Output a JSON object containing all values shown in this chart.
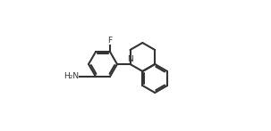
{
  "background_color": "#ffffff",
  "line_color": "#333333",
  "text_color": "#333333",
  "line_width": 1.5,
  "fig_width": 3.03,
  "fig_height": 1.47,
  "dpi": 100,
  "atoms": {
    "F": {
      "label": "F",
      "fontsize": 7
    },
    "N": {
      "label": "N",
      "fontsize": 7
    },
    "H2N": {
      "label": "H₂N",
      "fontsize": 7
    }
  }
}
